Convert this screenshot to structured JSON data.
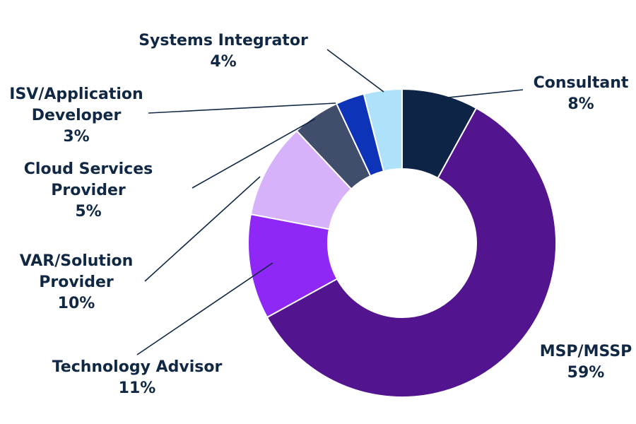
{
  "chart_data": {
    "type": "pie",
    "donut": true,
    "title": "",
    "start_angle_deg": 0,
    "direction": "clockwise",
    "slices": [
      {
        "name": "Consultant",
        "label_lines": [
          "Consultant"
        ],
        "value": 8,
        "value_label": "8%",
        "color": "#0e2446"
      },
      {
        "name": "MSP/MSSP",
        "label_lines": [
          "MSP/MSSP"
        ],
        "value": 59,
        "value_label": "59%",
        "color": "#52148f"
      },
      {
        "name": "Technology Advisor",
        "label_lines": [
          "Technology Advisor"
        ],
        "value": 11,
        "value_label": "11%",
        "color": "#8f27f7"
      },
      {
        "name": "VAR/Solution Provider",
        "label_lines": [
          "VAR/Solution",
          "Provider"
        ],
        "value": 10,
        "value_label": "10%",
        "color": "#d8b1fb"
      },
      {
        "name": "Cloud Services Provider",
        "label_lines": [
          "Cloud Services",
          "Provider"
        ],
        "value": 5,
        "value_label": "5%",
        "color": "#404e6c"
      },
      {
        "name": "ISV/Application Developer",
        "label_lines": [
          "ISV/Application",
          "Developer"
        ],
        "value": 3,
        "value_label": "3%",
        "color": "#0d34b8"
      },
      {
        "name": "Systems Integrator",
        "label_lines": [
          "Systems Integrator"
        ],
        "value": 4,
        "value_label": "4%",
        "color": "#aee2fa"
      }
    ]
  }
}
